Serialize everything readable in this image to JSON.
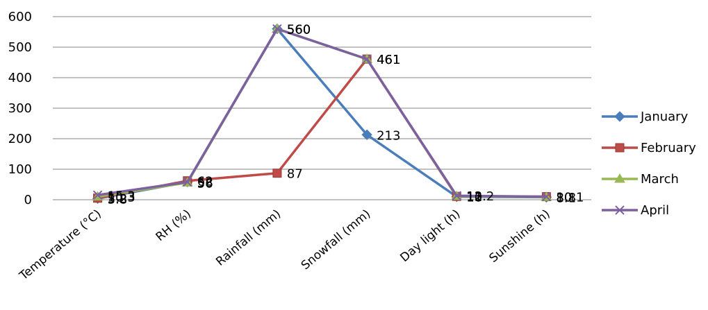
{
  "chart_data": {
    "type": "line",
    "categories": [
      "Temperature (°C)",
      "RH (%)",
      "Rainfall (mm)",
      "Snowfall (mm)",
      "Day light (h)",
      "Sunshine (h)"
    ],
    "ylim": [
      0,
      600
    ],
    "yticks": [
      0,
      100,
      200,
      300,
      400,
      500,
      600
    ],
    "grid": true,
    "legend": "right",
    "series": [
      {
        "name": "January",
        "color": "#4A7EBB",
        "marker": "diamond",
        "values": [
          3.8,
          58,
          560,
          213,
          10,
          8.1
        ],
        "labels": [
          "3.8",
          "58",
          "560",
          "213",
          "10",
          "8.1"
        ]
      },
      {
        "name": "February",
        "color": "#BE4B48",
        "marker": "square",
        "values": [
          5.2,
          62,
          87,
          461,
          11,
          10.1
        ],
        "labels": [
          "5.2",
          "62",
          "87",
          "461",
          "11",
          "10.1"
        ]
      },
      {
        "name": "March",
        "color": "#98B954",
        "marker": "triangle",
        "values": [
          10.3,
          56,
          560,
          461,
          12,
          8.8
        ],
        "labels": [
          "10.3",
          "56",
          "560",
          "461",
          "12",
          "8.8"
        ]
      },
      {
        "name": "April",
        "color": "#7D60A0",
        "marker": "x",
        "values": [
          15.3,
          58,
          560,
          461,
          13.2,
          10
        ],
        "labels": [
          "15.3",
          "58",
          "560",
          "461",
          "13.2",
          "10"
        ]
      }
    ]
  }
}
